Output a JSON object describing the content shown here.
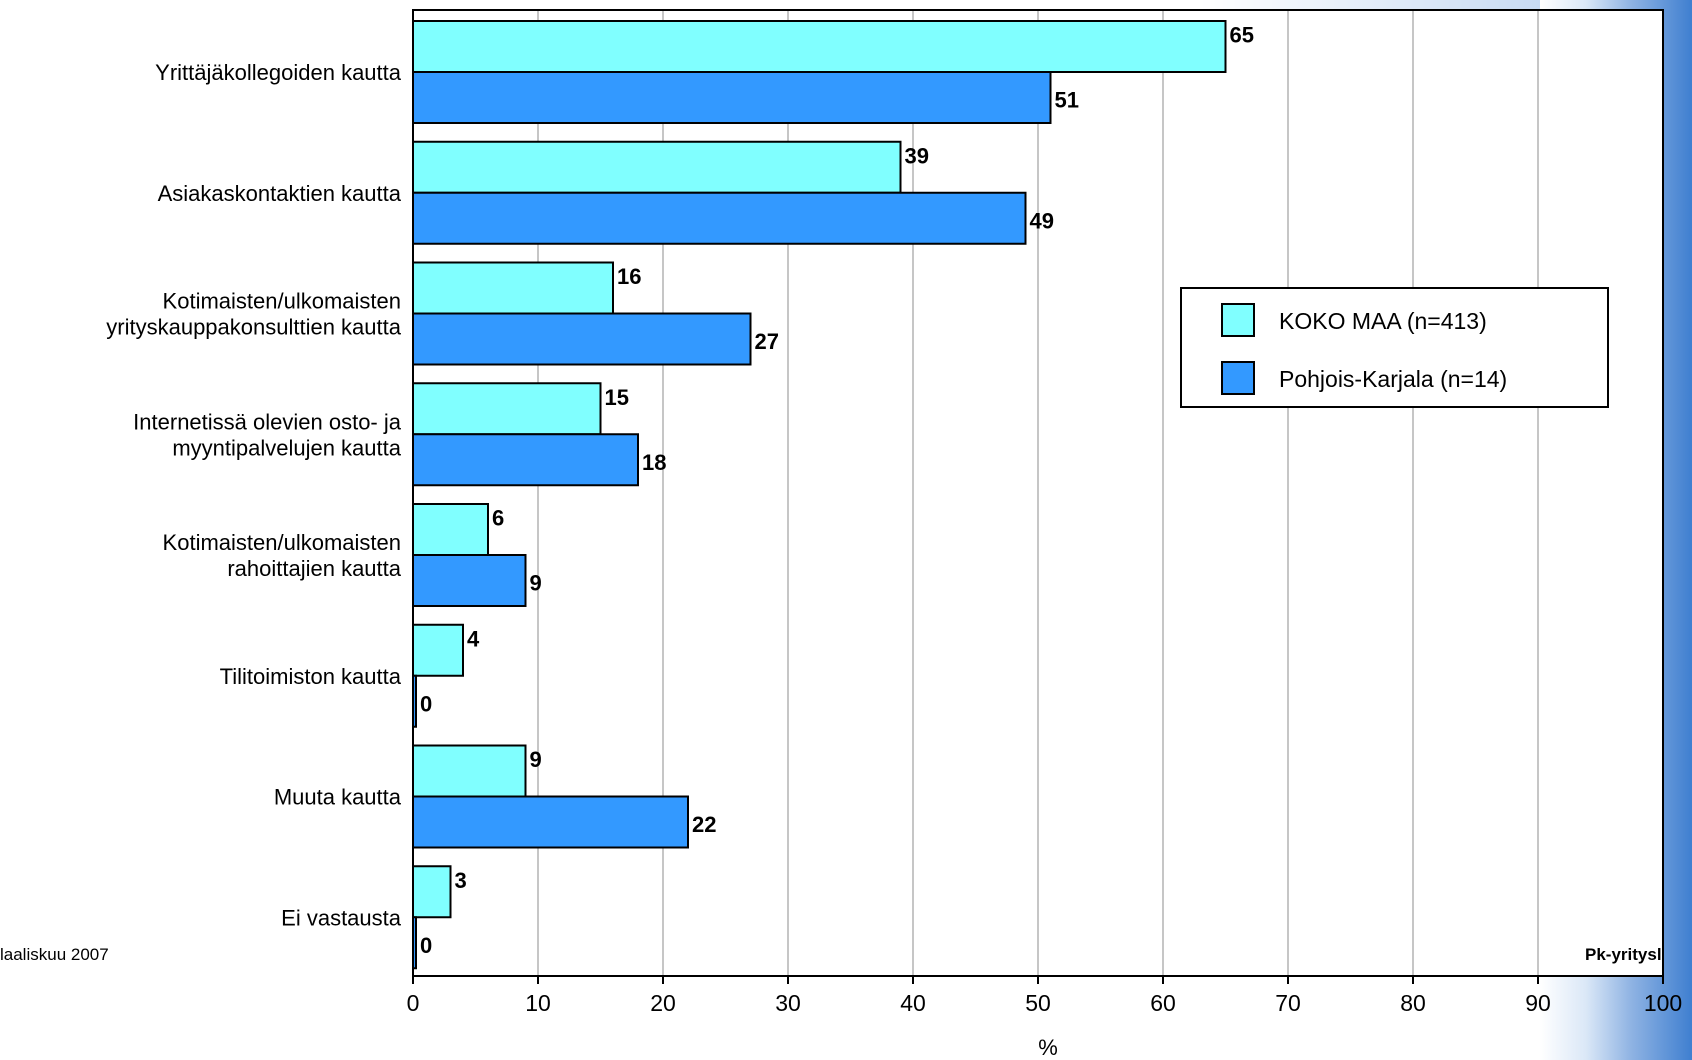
{
  "chart_data": {
    "type": "bar",
    "orientation": "horizontal",
    "categories": [
      [
        "Yrittäjäkollegoiden kautta"
      ],
      [
        "Asiakaskontaktien kautta"
      ],
      [
        "Kotimaisten/ulkomaisten",
        "yrityskauppakonsulttien kautta"
      ],
      [
        "Internetissä olevien osto- ja",
        "myyntipalvelujen kautta"
      ],
      [
        "Kotimaisten/ulkomaisten",
        "rahoittajien kautta"
      ],
      [
        "Tilitoimiston kautta"
      ],
      [
        "Muuta kautta"
      ],
      [
        "Ei vastausta"
      ]
    ],
    "series": [
      {
        "name": "KOKO MAA (n=413)",
        "color": "#80ffff",
        "values": [
          65,
          39,
          16,
          15,
          6,
          4,
          9,
          3
        ]
      },
      {
        "name": "Pohjois-Karjala (n=14)",
        "color": "#3399ff",
        "values": [
          51,
          49,
          27,
          18,
          9,
          0,
          22,
          0
        ]
      }
    ],
    "xlabel": "%",
    "xlim": [
      0,
      100
    ],
    "xticks": [
      0,
      10,
      20,
      30,
      40,
      50,
      60,
      70,
      80,
      90,
      100
    ],
    "grid": "vertical",
    "legend_position": "right"
  },
  "footer": {
    "left": "laaliskuu 2007",
    "right": "Pk-yritysl"
  }
}
